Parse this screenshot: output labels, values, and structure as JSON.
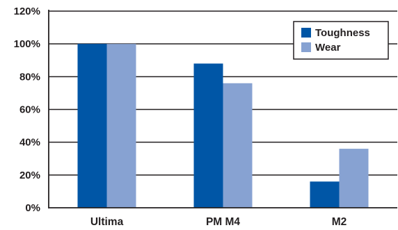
{
  "chart_data": {
    "type": "bar",
    "title": "",
    "xlabel": "",
    "ylabel": "",
    "categories": [
      "Ultima",
      "PM M4",
      "M2"
    ],
    "series": [
      {
        "name": "Toughness",
        "values": [
          100,
          88,
          16
        ],
        "color": "#0056a6"
      },
      {
        "name": "Wear",
        "values": [
          100,
          76,
          36
        ],
        "color": "#87a2d2"
      }
    ],
    "ylim": [
      0,
      120
    ],
    "yticks": [
      0,
      20,
      40,
      60,
      80,
      100,
      120
    ],
    "ytick_labels": [
      "0%",
      "20%",
      "40%",
      "60%",
      "80%",
      "100%",
      "120%"
    ],
    "grid": true,
    "legend_position": "top-right"
  }
}
